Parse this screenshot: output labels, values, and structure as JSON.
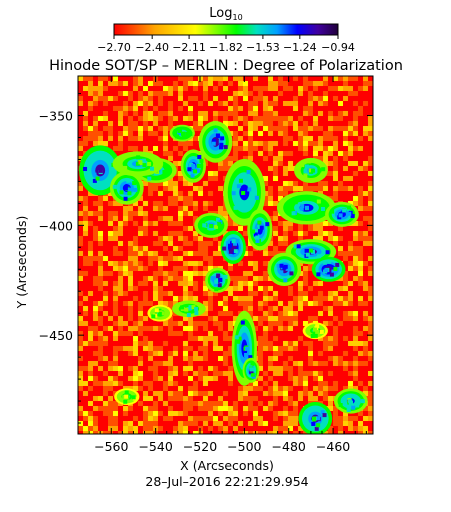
{
  "chart_data": {
    "type": "heatmap",
    "title": "Hinode SOT/SP – MERLIN : Degree of Polarization",
    "xlabel": "X (Arcseconds)",
    "ylabel": "Y (Arcseconds)",
    "timestamp": "28–Jul–2016 22:21:29.954",
    "colorbar": {
      "title_base": "Log",
      "title_sub": "10",
      "range": [
        -2.7,
        -0.94
      ],
      "tick_values": [
        -2.7,
        -2.4,
        -2.11,
        -1.82,
        -1.53,
        -1.24,
        -0.94
      ],
      "tick_labels": [
        "−2.70",
        "−2.40",
        "−2.11",
        "−1.82",
        "−1.53",
        "−1.24",
        "−0.94"
      ],
      "colors": [
        "#ff0000",
        "#ff5000",
        "#ffa500",
        "#ffd200",
        "#ffff00",
        "#80ff00",
        "#00ff00",
        "#00e0c0",
        "#00a0ff",
        "#0000ff",
        "#4000a0",
        "#20003a"
      ]
    },
    "xlim": [
      -575,
      -442
    ],
    "ylim": [
      -495,
      -332
    ],
    "xticks": [
      {
        "v": -560,
        "label": "−560"
      },
      {
        "v": -540,
        "label": "−540"
      },
      {
        "v": -520,
        "label": "−520"
      },
      {
        "v": -500,
        "label": "−500"
      },
      {
        "v": -480,
        "label": "−480"
      },
      {
        "v": -460,
        "label": "−460"
      }
    ],
    "yticks": [
      {
        "v": -350,
        "label": "−350"
      },
      {
        "v": -400,
        "label": "−400"
      },
      {
        "v": -450,
        "label": "−450"
      }
    ],
    "features": [
      {
        "x": -565,
        "y": -375,
        "rx": 5,
        "ry": 6,
        "level": 0.92
      },
      {
        "x": -553,
        "y": -383,
        "rx": 4,
        "ry": 4,
        "level": 0.85
      },
      {
        "x": -540,
        "y": -375,
        "rx": 5,
        "ry": 3,
        "level": 0.75
      },
      {
        "x": -548,
        "y": -372,
        "rx": 6,
        "ry": 3,
        "level": 0.7
      },
      {
        "x": -523,
        "y": -373,
        "rx": 3,
        "ry": 4,
        "level": 0.85
      },
      {
        "x": -513,
        "y": -362,
        "rx": 4,
        "ry": 5,
        "level": 0.9
      },
      {
        "x": -528,
        "y": -358,
        "rx": 3,
        "ry": 2,
        "level": 0.72
      },
      {
        "x": -500,
        "y": -385,
        "rx": 5,
        "ry": 8,
        "level": 0.8
      },
      {
        "x": -505,
        "y": -410,
        "rx": 3,
        "ry": 4,
        "level": 0.95
      },
      {
        "x": -512,
        "y": -425,
        "rx": 3,
        "ry": 3,
        "level": 0.9
      },
      {
        "x": -493,
        "y": -402,
        "rx": 3,
        "ry": 5,
        "level": 0.85
      },
      {
        "x": -470,
        "y": -412,
        "rx": 6,
        "ry": 3,
        "level": 0.9
      },
      {
        "x": -482,
        "y": -420,
        "rx": 4,
        "ry": 4,
        "level": 0.88
      },
      {
        "x": -462,
        "y": -420,
        "rx": 4,
        "ry": 3,
        "level": 0.95
      },
      {
        "x": -472,
        "y": -392,
        "rx": 7,
        "ry": 4,
        "level": 0.78
      },
      {
        "x": -456,
        "y": -395,
        "rx": 4,
        "ry": 3,
        "level": 0.85
      },
      {
        "x": -470,
        "y": -375,
        "rx": 4,
        "ry": 3,
        "level": 0.7
      },
      {
        "x": -500,
        "y": -456,
        "rx": 3,
        "ry": 9,
        "level": 0.85
      },
      {
        "x": -497,
        "y": -466,
        "rx": 2,
        "ry": 3,
        "level": 0.9
      },
      {
        "x": -525,
        "y": -438,
        "rx": 4,
        "ry": 2,
        "level": 0.68
      },
      {
        "x": -515,
        "y": -400,
        "rx": 4,
        "ry": 3,
        "level": 0.72
      },
      {
        "x": -468,
        "y": -488,
        "rx": 4,
        "ry": 4,
        "level": 0.92
      },
      {
        "x": -452,
        "y": -480,
        "rx": 4,
        "ry": 3,
        "level": 0.8
      },
      {
        "x": -468,
        "y": -448,
        "rx": 3,
        "ry": 2,
        "level": 0.6
      },
      {
        "x": -553,
        "y": -478,
        "rx": 3,
        "ry": 2,
        "level": 0.62
      },
      {
        "x": -538,
        "y": -440,
        "rx": 3,
        "ry": 2,
        "level": 0.6
      }
    ]
  }
}
